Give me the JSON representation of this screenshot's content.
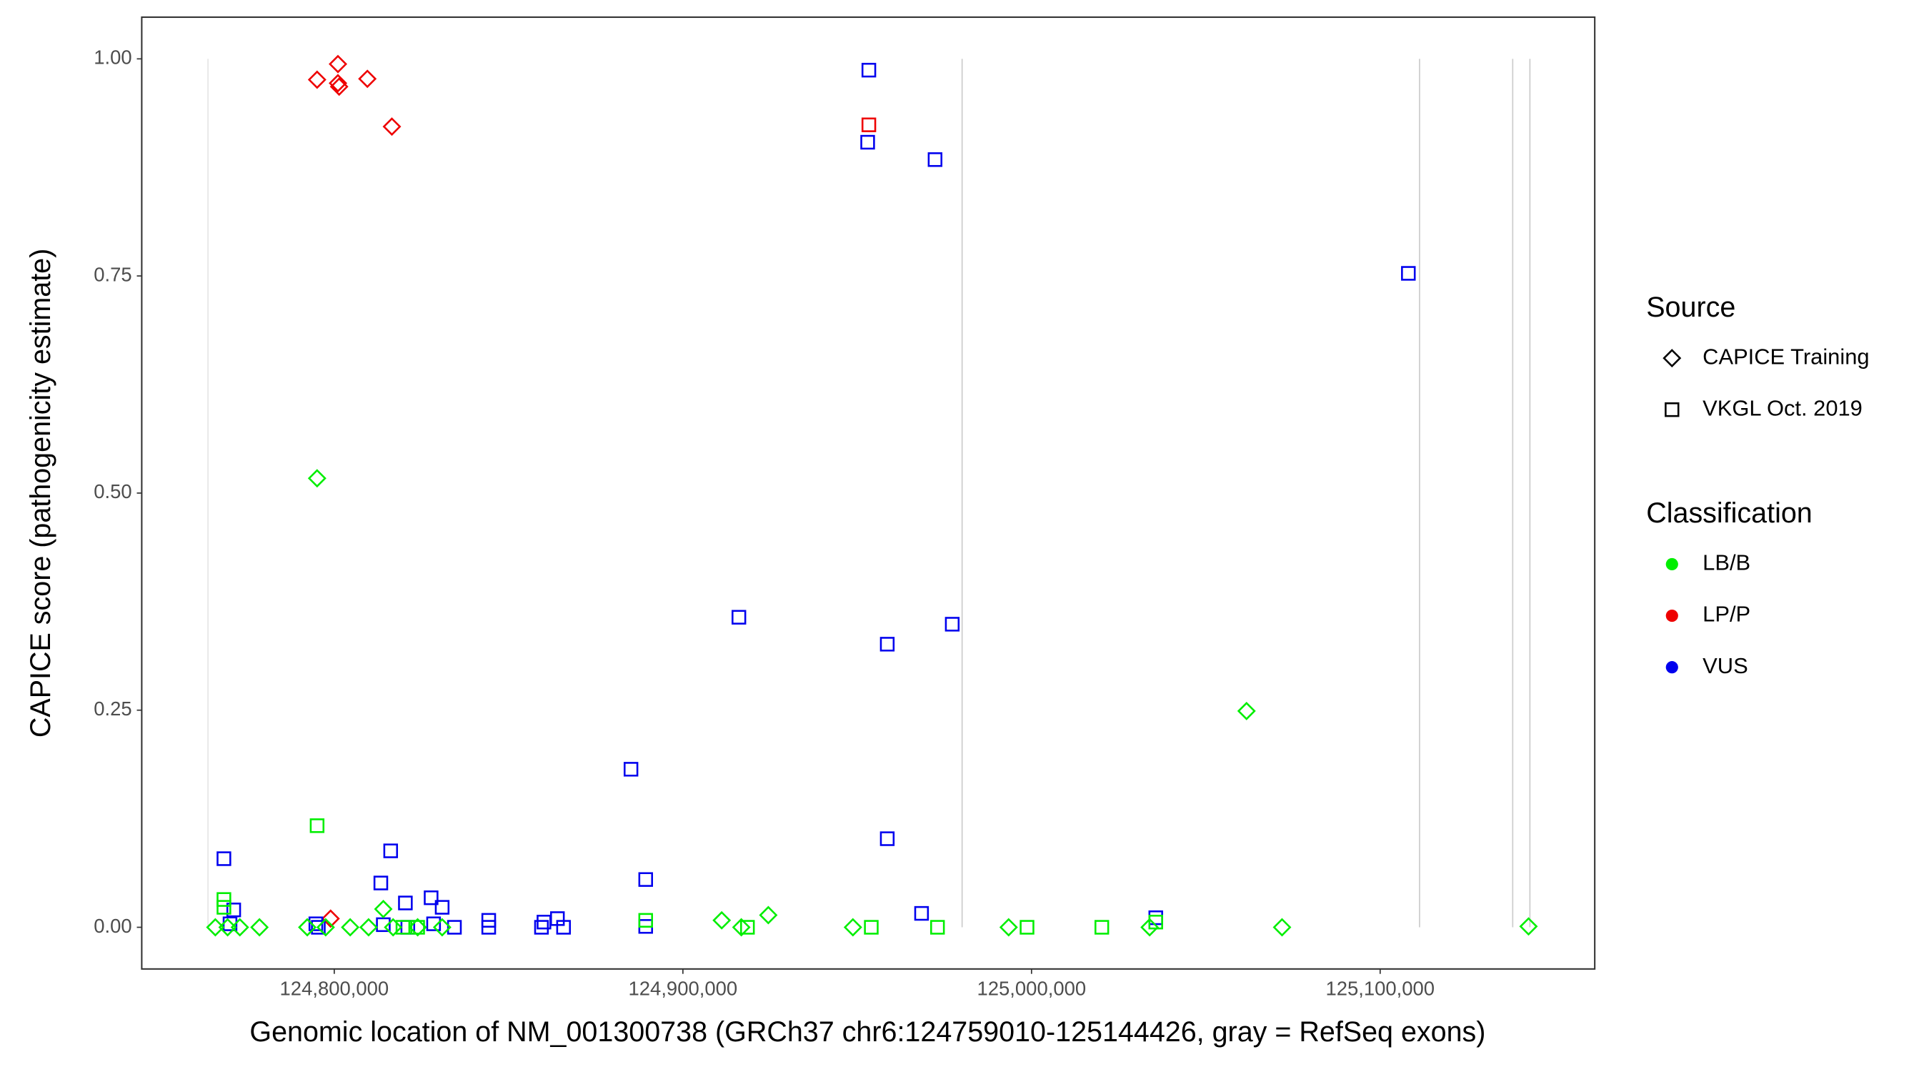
{
  "chart_data": {
    "type": "scatter",
    "xlabel": "Genomic location of NM_001300738 (GRCh37 chr6:124759010-125144426, gray = RefSeq exons)",
    "ylabel": "CAPICE score (pathogenicity estimate)",
    "xlim": [
      124744780,
      125161550
    ],
    "ylim": [
      -0.048,
      1.048
    ],
    "xticks": [
      {
        "value": 124800000,
        "label": "124,800,000"
      },
      {
        "value": 124900000,
        "label": "124,900,000"
      },
      {
        "value": 125000000,
        "label": "125,000,000"
      },
      {
        "value": 125100000,
        "label": "125,100,000"
      }
    ],
    "yticks": [
      {
        "value": 0,
        "label": "0.00"
      },
      {
        "value": 0.25,
        "label": "0.25"
      },
      {
        "value": 0.5,
        "label": "0.50"
      },
      {
        "value": 0.75,
        "label": "0.75"
      },
      {
        "value": 1,
        "label": "1.00"
      }
    ],
    "exons": [
      124763770,
      124980090,
      125111290,
      125138020,
      125142950
    ],
    "exon_color": "#cccccc",
    "legends": [
      {
        "title": "Source",
        "entries": [
          {
            "label": "CAPICE Training",
            "shape": "diamond"
          },
          {
            "label": "VKGL Oct. 2019",
            "shape": "square"
          }
        ]
      },
      {
        "title": "Classification",
        "entries": [
          {
            "label": "LB/B",
            "color": "#00ee00"
          },
          {
            "label": "LP/P",
            "color": "#ee0000"
          },
          {
            "label": "VUS",
            "color": "#0000ee"
          }
        ]
      }
    ],
    "series": [
      {
        "source": "CAPICE Training",
        "classification": "LP/P",
        "x": [
          124795080,
          124801060,
          124801060,
          124801400,
          124809500,
          124816530,
          124798950
        ],
        "y": [
          0.976,
          0.994,
          0.972,
          0.968,
          0.977,
          0.922,
          0.01
        ]
      },
      {
        "source": "VKGL Oct. 2019",
        "classification": "LP/P",
        "x": [
          124953340
        ],
        "y": [
          0.924
        ]
      },
      {
        "source": "VKGL Oct. 2019",
        "classification": "VUS",
        "x": [
          124953340,
          124953000,
          124972330,
          125108090,
          124916060,
          124958620,
          124977260,
          124885110,
          124958620,
          124889330,
          124968460,
          125035640,
          124768350,
          124771160,
          124770100,
          124816180,
          124813360,
          124820400,
          124827780,
          124830950,
          124814070,
          124794720,
          124795430,
          124821100,
          124828490,
          124834470,
          124844310,
          124844310,
          124859440,
          124860150,
          124864010,
          124865770,
          124889330
        ],
        "y": [
          0.987,
          0.904,
          0.884,
          0.753,
          0.357,
          0.326,
          0.349,
          0.182,
          0.102,
          0.055,
          0.016,
          0.011,
          0.079,
          0.02,
          0.004,
          0.088,
          0.051,
          0.028,
          0.034,
          0.023,
          0.003,
          0.004,
          0,
          0,
          0.004,
          0,
          0.008,
          0,
          0,
          0.006,
          0.01,
          0,
          0.001
        ]
      },
      {
        "source": "VKGL Oct. 2019",
        "classification": "LB/B",
        "x": [
          124795080,
          124768350,
          124768350,
          124889330,
          124918520,
          124954040,
          124973030,
          124998710,
          125020160,
          125035640,
          124819700,
          124823920
        ],
        "y": [
          0.117,
          0.032,
          0.023,
          0.008,
          0,
          0,
          0,
          0,
          0,
          0.006,
          0,
          0
        ]
      },
      {
        "source": "CAPICE Training",
        "classification": "LB/B",
        "x": [
          124795080,
          125061670,
          124814070,
          124765890,
          124769410,
          124772920,
          124778550,
          124792260,
          124797540,
          124804570,
          124809850,
          124816880,
          124823920,
          124830950,
          124911140,
          124916760,
          124924500,
          124948770,
          124993440,
          125033880,
          125071860,
          125142560
        ],
        "y": [
          0.517,
          0.249,
          0.021,
          0,
          0,
          0,
          0,
          0,
          0,
          0,
          0,
          0,
          0,
          0,
          0.008,
          0,
          0.014,
          0,
          0,
          0,
          0,
          0.001
        ]
      }
    ]
  }
}
